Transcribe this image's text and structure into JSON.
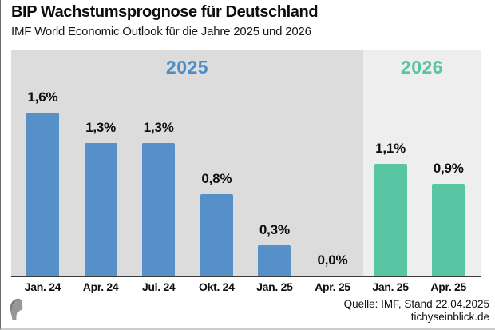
{
  "header": {
    "title": "BIP Wachstumsprognose für Deutschland",
    "subtitle": "IMF World Economic Outlook für die Jahre 2025 und 2026"
  },
  "chart_data": {
    "type": "bar",
    "title": "BIP Wachstumsprognose für Deutschland",
    "subtitle": "IMF World Economic Outlook für die Jahre 2025 und 2026",
    "unit": "%",
    "ylim": [
      0,
      2.2
    ],
    "grid": false,
    "legend": "none",
    "value_label_format": "german-decimal-comma",
    "groups": [
      {
        "label": "2025",
        "bar_color": "#5590c8",
        "label_color": "#4c8dc5",
        "panel_color": "#dcdcdd",
        "items": [
          {
            "category": "Jan. 24",
            "value": 1.6,
            "display": "1,6%"
          },
          {
            "category": "Apr. 24",
            "value": 1.3,
            "display": "1,3%"
          },
          {
            "category": "Jul. 24",
            "value": 1.3,
            "display": "1,3%"
          },
          {
            "category": "Okt. 24",
            "value": 0.8,
            "display": "0,8%"
          },
          {
            "category": "Jan. 25",
            "value": 0.3,
            "display": "0,3%"
          },
          {
            "category": "Apr. 25",
            "value": 0.0,
            "display": "0,0%"
          }
        ]
      },
      {
        "label": "2026",
        "bar_color": "#58c6a2",
        "label_color": "#56c5a0",
        "panel_color": "#eeeeee",
        "items": [
          {
            "category": "Jan. 25",
            "value": 1.1,
            "display": "1,1%"
          },
          {
            "category": "Apr. 25",
            "value": 0.9,
            "display": "0,9%"
          }
        ]
      }
    ]
  },
  "footer": {
    "source": "Quelle: IMF, Stand 22.04.2025",
    "site": "tichyseinblick.de"
  },
  "icons": {
    "logo": "tichys-einblick-classical-head-logo"
  }
}
